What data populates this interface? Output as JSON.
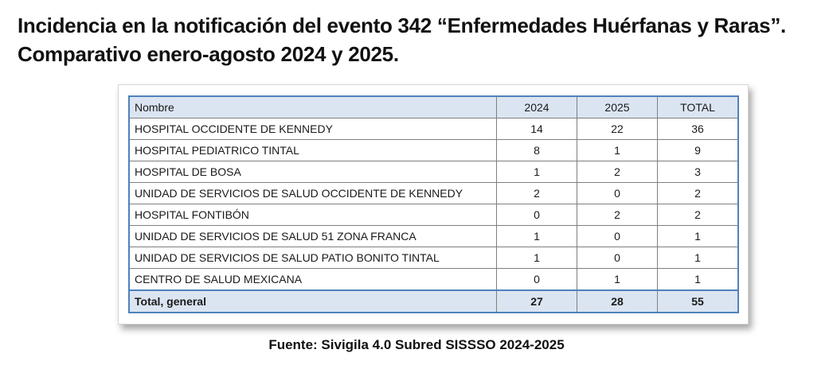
{
  "title": {
    "line1": "Incidencia en la notificación del evento 342 “Enfermedades Huérfanas y Raras”.",
    "line2": "Comparativo enero-agosto 2024 y 2025."
  },
  "table": {
    "columns": [
      "Nombre",
      "2024",
      "2025",
      "TOTAL"
    ],
    "rows": [
      {
        "name": "HOSPITAL OCCIDENTE DE KENNEDY",
        "y2024": "14",
        "y2025": "22",
        "total": "36"
      },
      {
        "name": "HOSPITAL PEDIATRICO TINTAL",
        "y2024": "8",
        "y2025": "1",
        "total": "9"
      },
      {
        "name": "HOSPITAL DE BOSA",
        "y2024": "1",
        "y2025": "2",
        "total": "3"
      },
      {
        "name": "UNIDAD DE SERVICIOS DE SALUD OCCIDENTE DE KENNEDY",
        "y2024": "2",
        "y2025": "0",
        "total": "2"
      },
      {
        "name": "HOSPITAL FONTIBÓN",
        "y2024": "0",
        "y2025": "2",
        "total": "2"
      },
      {
        "name": "UNIDAD DE SERVICIOS DE SALUD 51 ZONA FRANCA",
        "y2024": "1",
        "y2025": "0",
        "total": "1"
      },
      {
        "name": "UNIDAD DE SERVICIOS DE SALUD PATIO BONITO TINTAL",
        "y2024": "1",
        "y2025": "0",
        "total": "1"
      },
      {
        "name": "CENTRO DE SALUD MEXICANA",
        "y2024": "0",
        "y2025": "1",
        "total": "1"
      }
    ],
    "total_row": {
      "name": "Total, general",
      "y2024": "27",
      "y2025": "28",
      "total": "55"
    }
  },
  "source": "Fuente:  Sivigila 4.0 Subred SISSSO 2024-2025"
}
